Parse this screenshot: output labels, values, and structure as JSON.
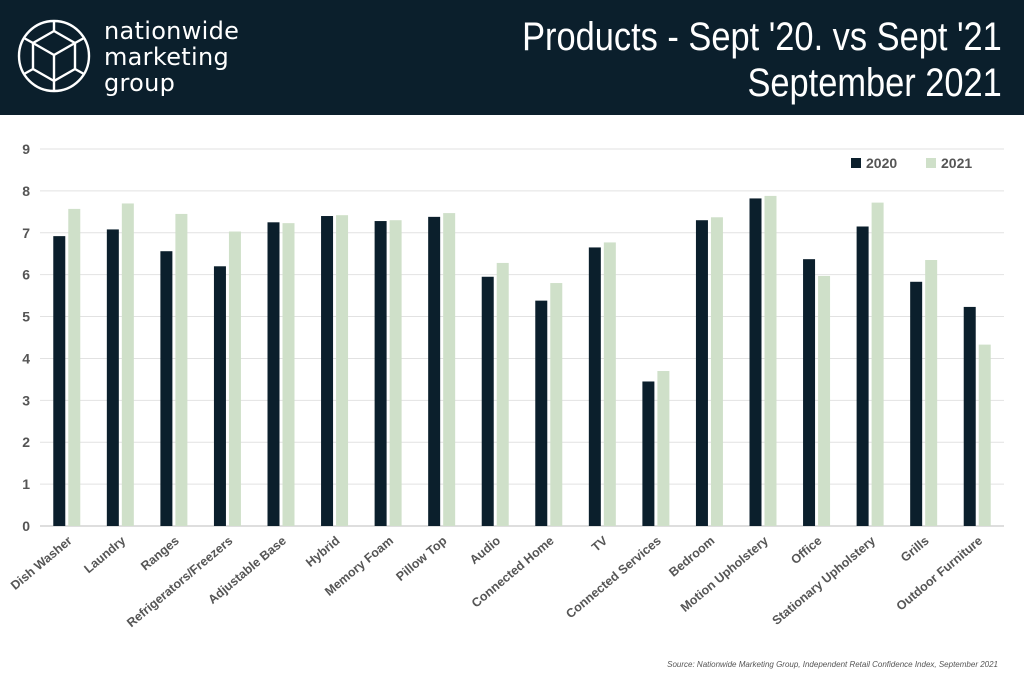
{
  "header": {
    "brand_lines": [
      "nationwide",
      "marketing",
      "group"
    ],
    "title_line1": "Products - Sept '20. vs Sept '21",
    "title_line2": "September 2021",
    "background_color": "#0b1f2c"
  },
  "logo": {
    "icon": "geodesic-sphere-icon"
  },
  "chart_data": {
    "type": "bar",
    "categories": [
      "Dish Washer",
      "Laundry",
      "Ranges",
      "Refrigerators/Freezers",
      "Adjustable Base",
      "Hybrid",
      "Memory Foam",
      "Pillow Top",
      "Audio",
      "Connected Home",
      "TV",
      "Connected Services",
      "Bedroom",
      "Motion Upholstery",
      "Office",
      "Stationary Upholstery",
      "Grills",
      "Outdoor Furniture"
    ],
    "series": [
      {
        "name": "2020",
        "color": "#0b1f2c",
        "values": [
          6.92,
          7.08,
          6.56,
          6.2,
          7.25,
          7.4,
          7.28,
          7.38,
          5.95,
          5.38,
          6.65,
          3.45,
          7.3,
          7.82,
          6.37,
          7.15,
          5.83,
          5.23
        ]
      },
      {
        "name": "2021",
        "color": "#cfe0c9",
        "values": [
          7.57,
          7.7,
          7.45,
          7.03,
          7.23,
          7.42,
          7.3,
          7.47,
          6.28,
          5.8,
          6.77,
          3.7,
          7.37,
          7.88,
          5.97,
          7.72,
          6.35,
          4.33
        ]
      }
    ],
    "ylim": [
      0,
      9
    ],
    "yticks": [
      "0",
      "1",
      "2",
      "3",
      "4",
      "5",
      "6",
      "7",
      "8",
      "9"
    ],
    "grid": true,
    "legend_position": "top-right",
    "title": "",
    "xlabel": "",
    "ylabel": ""
  },
  "source": "Source: Nationwide Marketing Group, Independent Retail Confidence Index, September 2021"
}
